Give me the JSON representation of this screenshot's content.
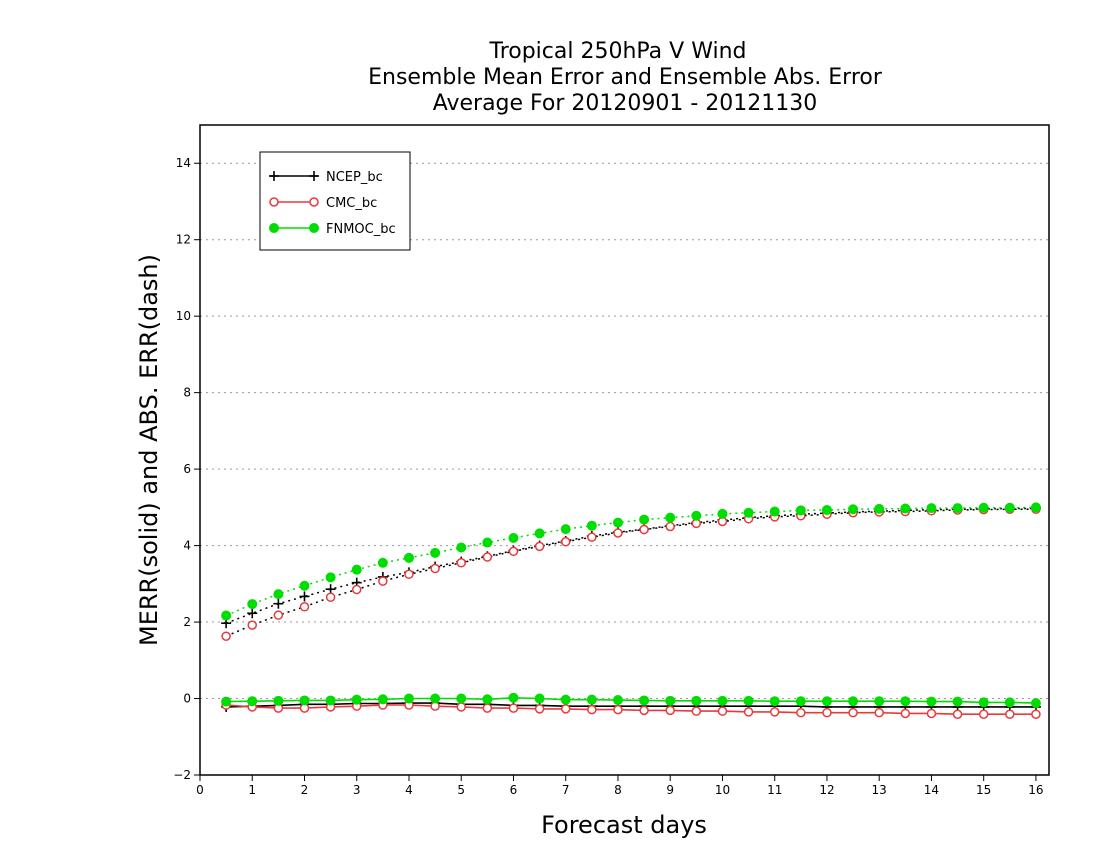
{
  "chart_data": {
    "type": "line",
    "title": [
      "Tropical 250hPa V Wind",
      "Ensemble Mean Error and Ensemble Abs. Error",
      "Average For 20120901 - 20121130"
    ],
    "xlabel": "Forecast days",
    "ylabel": "MERR(solid) and ABS. ERR(dash)",
    "xlim": [
      0,
      16.25
    ],
    "ylim": [
      -2,
      15
    ],
    "xticks": [
      0,
      1,
      2,
      3,
      4,
      5,
      6,
      7,
      8,
      9,
      10,
      11,
      12,
      13,
      14,
      15,
      16
    ],
    "yticks": [
      -2,
      0,
      2,
      4,
      6,
      8,
      10,
      12,
      14
    ],
    "grid": "horizontal dotted",
    "legend_position": "top-left",
    "x": [
      0.5,
      1,
      1.5,
      2,
      2.5,
      3,
      3.5,
      4,
      4.5,
      5,
      5.5,
      6,
      6.5,
      7,
      7.5,
      8,
      8.5,
      9,
      9.5,
      10,
      10.5,
      11,
      11.5,
      12,
      12.5,
      13,
      13.5,
      14,
      14.5,
      15,
      15.5,
      16
    ],
    "series": [
      {
        "name": "NCEP_bc",
        "color": "#000000",
        "marker": "plus",
        "dash_color": "#000000",
        "mean_error": [
          -0.22,
          -0.2,
          -0.18,
          -0.15,
          -0.15,
          -0.13,
          -0.13,
          -0.12,
          -0.12,
          -0.15,
          -0.15,
          -0.18,
          -0.18,
          -0.2,
          -0.2,
          -0.2,
          -0.2,
          -0.2,
          -0.2,
          -0.2,
          -0.2,
          -0.2,
          -0.2,
          -0.22,
          -0.22,
          -0.22,
          -0.22,
          -0.22,
          -0.22,
          -0.22,
          -0.22,
          -0.22
        ],
        "abs_error": [
          1.97,
          2.23,
          2.48,
          2.67,
          2.86,
          3.03,
          3.18,
          3.3,
          3.45,
          3.58,
          3.72,
          3.87,
          4.0,
          4.12,
          4.25,
          4.35,
          4.43,
          4.52,
          4.6,
          4.67,
          4.73,
          4.78,
          4.82,
          4.85,
          4.88,
          4.9,
          4.92,
          4.94,
          4.95,
          4.96,
          4.97,
          4.97
        ]
      },
      {
        "name": "CMC_bc",
        "color": "#e8393b",
        "marker": "open-circle",
        "dash_color": "#000000",
        "mean_error": [
          -0.17,
          -0.22,
          -0.25,
          -0.25,
          -0.22,
          -0.2,
          -0.17,
          -0.17,
          -0.2,
          -0.22,
          -0.25,
          -0.25,
          -0.27,
          -0.27,
          -0.29,
          -0.29,
          -0.31,
          -0.31,
          -0.33,
          -0.33,
          -0.35,
          -0.35,
          -0.37,
          -0.37,
          -0.37,
          -0.37,
          -0.39,
          -0.39,
          -0.41,
          -0.41,
          -0.41,
          -0.41
        ],
        "abs_error": [
          1.63,
          1.92,
          2.18,
          2.4,
          2.65,
          2.85,
          3.07,
          3.25,
          3.4,
          3.55,
          3.7,
          3.85,
          3.98,
          4.1,
          4.22,
          4.33,
          4.42,
          4.5,
          4.58,
          4.63,
          4.7,
          4.75,
          4.78,
          4.82,
          4.86,
          4.88,
          4.89,
          4.91,
          4.93,
          4.94,
          4.95,
          4.95
        ]
      },
      {
        "name": "FNMOC_bc",
        "color": "#00dd00",
        "marker": "filled-circle",
        "dash_color": "#00dd00",
        "mean_error": [
          -0.08,
          -0.07,
          -0.06,
          -0.05,
          -0.05,
          -0.03,
          -0.02,
          0.0,
          0.0,
          0.0,
          -0.02,
          0.02,
          0.0,
          -0.03,
          -0.03,
          -0.04,
          -0.05,
          -0.06,
          -0.06,
          -0.06,
          -0.06,
          -0.07,
          -0.07,
          -0.07,
          -0.07,
          -0.07,
          -0.07,
          -0.08,
          -0.08,
          -0.1,
          -0.1,
          -0.12
        ],
        "abs_error": [
          2.17,
          2.47,
          2.73,
          2.95,
          3.17,
          3.37,
          3.55,
          3.68,
          3.81,
          3.95,
          4.08,
          4.2,
          4.32,
          4.43,
          4.52,
          4.6,
          4.68,
          4.73,
          4.78,
          4.83,
          4.86,
          4.89,
          4.92,
          4.93,
          4.95,
          4.96,
          4.97,
          4.98,
          4.98,
          4.99,
          4.99,
          5.0
        ]
      }
    ]
  }
}
